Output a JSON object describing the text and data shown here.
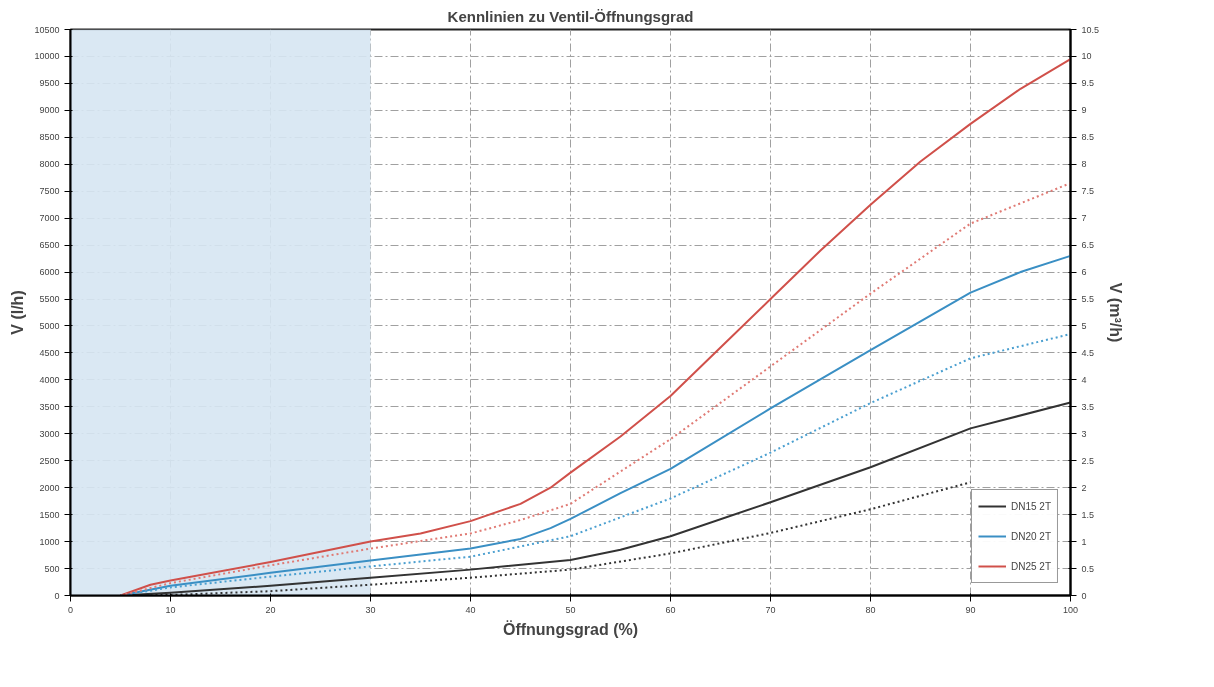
{
  "chart_data": {
    "type": "line",
    "title": "Kennlinien zu Ventil-Öffnungsgrad",
    "xlabel": "Öffnungsgrad (%)",
    "ylabel": "V (l/h)",
    "y2label": "V (m³/h)",
    "xlim": [
      0,
      100
    ],
    "xticks": [
      0,
      10,
      20,
      30,
      40,
      50,
      60,
      70,
      80,
      90,
      100
    ],
    "ylim": [
      0,
      10500
    ],
    "yticks": [
      0,
      500,
      1000,
      1500,
      2000,
      2500,
      3000,
      3500,
      4000,
      4500,
      5000,
      5500,
      6000,
      6500,
      7000,
      7500,
      8000,
      8500,
      9000,
      9500,
      10000,
      10500
    ],
    "y2lim": [
      0,
      10.5
    ],
    "y2ticks": [
      0,
      0.5,
      1,
      1.5,
      2,
      2.5,
      3,
      3.5,
      4,
      4.5,
      5,
      5.5,
      6,
      6.5,
      7,
      7.5,
      8,
      8.5,
      9,
      9.5,
      10,
      10.5
    ],
    "grid": true,
    "legend": "bottom right",
    "line_style": "solid",
    "bands": [
      {
        "axis": "x",
        "from": 0,
        "to": 30,
        "color": "#d6e6f2"
      }
    ],
    "series": [
      {
        "name": "DN15 2T",
        "color": "#333333",
        "x": [
          5,
          10,
          20,
          30,
          40,
          50,
          55,
          60,
          70,
          80,
          90,
          100
        ],
        "values": [
          0,
          50,
          180,
          330,
          480,
          660,
          850,
          1100,
          1730,
          2380,
          3100,
          3580
        ]
      },
      {
        "name": "DN20 2T",
        "color": "#3a8fc4",
        "x": [
          5,
          10,
          20,
          30,
          40,
          45,
          48,
          50,
          55,
          60,
          70,
          80,
          90,
          95,
          100
        ],
        "values": [
          0,
          180,
          420,
          650,
          870,
          1050,
          1250,
          1420,
          1900,
          2350,
          3470,
          4550,
          5620,
          6000,
          6300
        ]
      },
      {
        "name": "DN25 2T",
        "color": "#d0504a",
        "x": [
          5,
          8,
          10,
          20,
          30,
          35,
          40,
          45,
          48,
          50,
          55,
          60,
          65,
          70,
          75,
          80,
          85,
          90,
          95,
          100
        ],
        "values": [
          0,
          200,
          280,
          620,
          1000,
          1150,
          1380,
          1700,
          2000,
          2280,
          2950,
          3700,
          4600,
          5500,
          6400,
          7250,
          8050,
          8750,
          9400,
          9950
        ]
      },
      {
        "color": "#333333",
        "line_style": "dotted",
        "x": [
          5,
          10,
          20,
          30,
          40,
          50,
          60,
          70,
          80,
          90
        ],
        "values": [
          0,
          10,
          80,
          200,
          330,
          480,
          780,
          1160,
          1600,
          2100
        ]
      },
      {
        "color": "#4a9fd0",
        "line_style": "dotted",
        "x": [
          5,
          10,
          20,
          30,
          40,
          50,
          60,
          70,
          80,
          90,
          100
        ],
        "values": [
          0,
          150,
          350,
          540,
          720,
          1100,
          1800,
          2650,
          3570,
          4400,
          4850
        ]
      },
      {
        "color": "#e07a74",
        "line_style": "dotted",
        "x": [
          5,
          10,
          20,
          30,
          40,
          45,
          50,
          60,
          70,
          80,
          90,
          100
        ],
        "values": [
          0,
          230,
          560,
          870,
          1150,
          1400,
          1700,
          2900,
          4250,
          5600,
          6900,
          7650
        ]
      }
    ]
  }
}
